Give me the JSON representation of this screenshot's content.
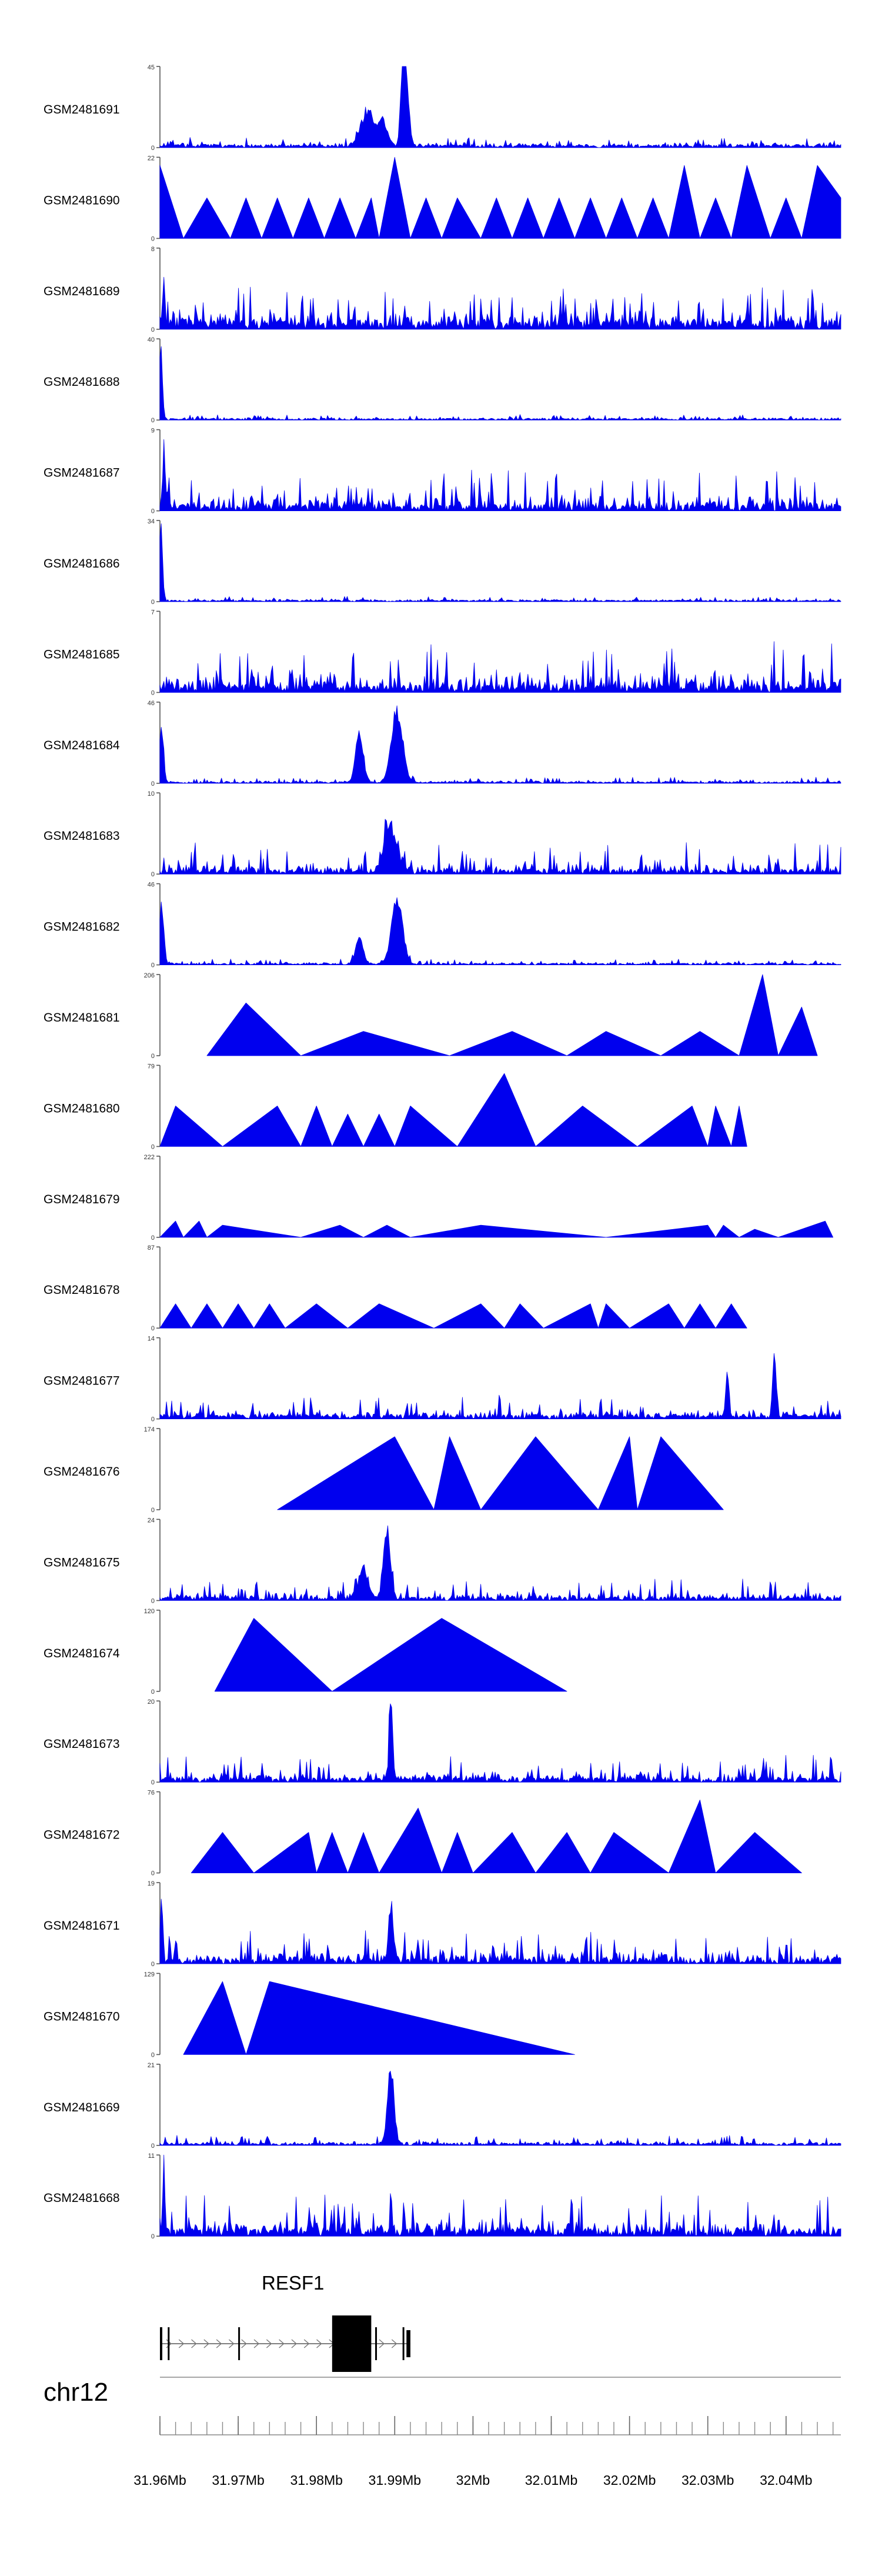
{
  "chart_data": {
    "type": "area",
    "title": "",
    "chromosome": "chr12",
    "x_range_mb": [
      31.96,
      32.047
    ],
    "x_ticks": [
      {
        "mb": 31.96,
        "label": "31.96Mb"
      },
      {
        "mb": 31.97,
        "label": "31.97Mb"
      },
      {
        "mb": 31.98,
        "label": "31.98Mb"
      },
      {
        "mb": 31.99,
        "label": "31.99Mb"
      },
      {
        "mb": 32.0,
        "label": "32Mb"
      },
      {
        "mb": 32.01,
        "label": "32.01Mb"
      },
      {
        "mb": 32.02,
        "label": "32.02Mb"
      },
      {
        "mb": 32.03,
        "label": "32.03Mb"
      },
      {
        "mb": 32.04,
        "label": "32.04Mb"
      }
    ],
    "minor_tick_step_mb": 0.002,
    "series_color": "#0000ee",
    "tracks": [
      {
        "name": "GSM2481691",
        "ymax": 45,
        "ymin": 0,
        "style": "dense",
        "base": 0.04,
        "noise": 0.1,
        "peaks": [
          {
            "mb": 31.9865,
            "h": 0.45,
            "w": 0.0012
          },
          {
            "mb": 31.9885,
            "h": 0.35,
            "w": 0.0008
          },
          {
            "mb": 31.991,
            "h": 1.0,
            "w": 0.0004
          },
          {
            "mb": 31.9915,
            "h": 0.8,
            "w": 0.0005
          }
        ]
      },
      {
        "name": "GSM2481690",
        "ymax": 22,
        "ymin": 0,
        "style": "tri",
        "points": [
          [
            31.96,
            0.9
          ],
          [
            31.963,
            0
          ],
          [
            31.966,
            0.5
          ],
          [
            31.969,
            0
          ],
          [
            31.971,
            0.5
          ],
          [
            31.973,
            0
          ],
          [
            31.975,
            0.5
          ],
          [
            31.977,
            0
          ],
          [
            31.979,
            0.5
          ],
          [
            31.981,
            0
          ],
          [
            31.983,
            0.5
          ],
          [
            31.985,
            0
          ],
          [
            31.987,
            0.5
          ],
          [
            31.988,
            0
          ],
          [
            31.99,
            1.0
          ],
          [
            31.992,
            0
          ],
          [
            31.994,
            0.5
          ],
          [
            31.996,
            0
          ],
          [
            31.998,
            0.5
          ],
          [
            32.001,
            0
          ],
          [
            32.003,
            0.5
          ],
          [
            32.005,
            0
          ],
          [
            32.007,
            0.5
          ],
          [
            32.009,
            0
          ],
          [
            32.011,
            0.5
          ],
          [
            32.013,
            0
          ],
          [
            32.015,
            0.5
          ],
          [
            32.017,
            0
          ],
          [
            32.019,
            0.5
          ],
          [
            32.021,
            0
          ],
          [
            32.023,
            0.5
          ],
          [
            32.025,
            0
          ],
          [
            32.027,
            0.9
          ],
          [
            32.029,
            0
          ],
          [
            32.031,
            0.5
          ],
          [
            32.033,
            0
          ],
          [
            32.035,
            0.9
          ],
          [
            32.038,
            0
          ],
          [
            32.04,
            0.5
          ],
          [
            32.042,
            0
          ],
          [
            32.044,
            0.9
          ],
          [
            32.047,
            0.5
          ]
        ]
      },
      {
        "name": "GSM2481689",
        "ymax": 8,
        "ymin": 0,
        "style": "dense",
        "base": 0.12,
        "noise": 0.45,
        "peaks": [
          {
            "mb": 31.9605,
            "h": 0.7,
            "w": 0.0002
          }
        ]
      },
      {
        "name": "GSM2481688",
        "ymax": 40,
        "ymin": 0,
        "style": "dense",
        "base": 0.02,
        "noise": 0.05,
        "peaks": [
          {
            "mb": 31.9601,
            "h": 1.0,
            "w": 0.0003
          }
        ]
      },
      {
        "name": "GSM2481687",
        "ymax": 9,
        "ymin": 0,
        "style": "dense",
        "base": 0.08,
        "noise": 0.45,
        "peaks": [
          {
            "mb": 31.9605,
            "h": 0.8,
            "w": 0.0002
          }
        ]
      },
      {
        "name": "GSM2481686",
        "ymax": 34,
        "ymin": 0,
        "style": "dense",
        "base": 0.02,
        "noise": 0.05,
        "peaks": [
          {
            "mb": 31.9601,
            "h": 1.0,
            "w": 0.0003
          }
        ]
      },
      {
        "name": "GSM2481685",
        "ymax": 7,
        "ymin": 0,
        "style": "dense",
        "base": 0.1,
        "noise": 0.55,
        "peaks": []
      },
      {
        "name": "GSM2481684",
        "ymax": 46,
        "ymin": 0,
        "style": "dense",
        "base": 0.02,
        "noise": 0.06,
        "peaks": [
          {
            "mb": 31.9602,
            "h": 0.7,
            "w": 0.0004
          },
          {
            "mb": 31.9855,
            "h": 0.65,
            "w": 0.0007
          },
          {
            "mb": 31.9903,
            "h": 1.0,
            "w": 0.001
          }
        ]
      },
      {
        "name": "GSM2481683",
        "ymax": 10,
        "ymin": 0,
        "style": "dense",
        "base": 0.06,
        "noise": 0.35,
        "peaks": [
          {
            "mb": 31.9895,
            "h": 0.6,
            "w": 0.0012
          }
        ]
      },
      {
        "name": "GSM2481682",
        "ymax": 46,
        "ymin": 0,
        "style": "dense",
        "base": 0.02,
        "noise": 0.06,
        "peaks": [
          {
            "mb": 31.9602,
            "h": 0.9,
            "w": 0.0004
          },
          {
            "mb": 31.9855,
            "h": 0.35,
            "w": 0.0007
          },
          {
            "mb": 31.9903,
            "h": 0.85,
            "w": 0.001
          }
        ]
      },
      {
        "name": "GSM2481681",
        "ymax": 206,
        "ymin": 0,
        "style": "tri",
        "points": [
          [
            31.966,
            0
          ],
          [
            31.971,
            0.65
          ],
          [
            31.978,
            0
          ],
          [
            31.986,
            0.3
          ],
          [
            31.997,
            0
          ],
          [
            32.005,
            0.3
          ],
          [
            32.012,
            0
          ],
          [
            32.017,
            0.3
          ],
          [
            32.024,
            0
          ],
          [
            32.029,
            0.3
          ],
          [
            32.034,
            0
          ],
          [
            32.037,
            1.0
          ],
          [
            32.039,
            0
          ],
          [
            32.042,
            0.6
          ],
          [
            32.044,
            0
          ]
        ]
      },
      {
        "name": "GSM2481680",
        "ymax": 79,
        "ymin": 0,
        "style": "tri",
        "points": [
          [
            31.96,
            0
          ],
          [
            31.962,
            0.5
          ],
          [
            31.968,
            0
          ],
          [
            31.975,
            0.5
          ],
          [
            31.978,
            0
          ],
          [
            31.98,
            0.5
          ],
          [
            31.982,
            0
          ],
          [
            31.984,
            0.4
          ],
          [
            31.986,
            0
          ],
          [
            31.988,
            0.4
          ],
          [
            31.99,
            0
          ],
          [
            31.992,
            0.5
          ],
          [
            31.998,
            0
          ],
          [
            32.004,
            0.9
          ],
          [
            32.008,
            0
          ],
          [
            32.014,
            0.5
          ],
          [
            32.021,
            0
          ],
          [
            32.028,
            0.5
          ],
          [
            32.03,
            0
          ],
          [
            32.031,
            0.5
          ],
          [
            32.033,
            0
          ],
          [
            32.034,
            0.5
          ],
          [
            32.035,
            0
          ]
        ]
      },
      {
        "name": "GSM2481679",
        "ymax": 222,
        "ymin": 0,
        "style": "tri",
        "points": [
          [
            31.96,
            0
          ],
          [
            31.962,
            0.2
          ],
          [
            31.963,
            0
          ],
          [
            31.965,
            0.2
          ],
          [
            31.966,
            0
          ],
          [
            31.968,
            0.15
          ],
          [
            31.978,
            0
          ],
          [
            31.983,
            0.15
          ],
          [
            31.986,
            0
          ],
          [
            31.989,
            0.15
          ],
          [
            31.992,
            0
          ],
          [
            32.001,
            0.15
          ],
          [
            32.017,
            0
          ],
          [
            32.03,
            0.15
          ],
          [
            32.031,
            0
          ],
          [
            32.032,
            0.15
          ],
          [
            32.034,
            0
          ],
          [
            32.036,
            0.1
          ],
          [
            32.039,
            0
          ],
          [
            32.045,
            0.2
          ],
          [
            32.046,
            0
          ]
        ]
      },
      {
        "name": "GSM2481678",
        "ymax": 87,
        "ymin": 0,
        "style": "tri",
        "points": [
          [
            31.96,
            0
          ],
          [
            31.962,
            0.3
          ],
          [
            31.964,
            0
          ],
          [
            31.966,
            0.3
          ],
          [
            31.968,
            0
          ],
          [
            31.97,
            0.3
          ],
          [
            31.972,
            0
          ],
          [
            31.974,
            0.3
          ],
          [
            31.976,
            0
          ],
          [
            31.98,
            0.3
          ],
          [
            31.984,
            0
          ],
          [
            31.988,
            0.3
          ],
          [
            31.995,
            0
          ],
          [
            32.001,
            0.3
          ],
          [
            32.004,
            0
          ],
          [
            32.006,
            0.3
          ],
          [
            32.009,
            0
          ],
          [
            32.015,
            0.3
          ],
          [
            32.016,
            0
          ],
          [
            32.017,
            0.3
          ],
          [
            32.02,
            0
          ],
          [
            32.025,
            0.3
          ],
          [
            32.027,
            0
          ],
          [
            32.029,
            0.3
          ],
          [
            32.031,
            0
          ],
          [
            32.033,
            0.3
          ],
          [
            32.035,
            0
          ]
        ]
      },
      {
        "name": "GSM2481677",
        "ymax": 14,
        "ymin": 0,
        "style": "dense",
        "base": 0.06,
        "noise": 0.25,
        "peaks": [
          {
            "mb": 32.0325,
            "h": 0.65,
            "w": 0.0003
          },
          {
            "mb": 32.0385,
            "h": 1.0,
            "w": 0.0003
          }
        ]
      },
      {
        "name": "GSM2481676",
        "ymax": 174,
        "ymin": 0,
        "style": "tri",
        "points": [
          [
            31.975,
            0
          ],
          [
            31.99,
            0.9
          ],
          [
            31.995,
            0
          ],
          [
            31.997,
            0.9
          ],
          [
            32.001,
            0
          ],
          [
            32.008,
            0.9
          ],
          [
            32.016,
            0
          ],
          [
            32.02,
            0.9
          ],
          [
            32.021,
            0
          ],
          [
            32.024,
            0.9
          ],
          [
            32.032,
            0
          ]
        ]
      },
      {
        "name": "GSM2481675",
        "ymax": 24,
        "ymin": 0,
        "style": "dense",
        "base": 0.05,
        "noise": 0.22,
        "peaks": [
          {
            "mb": 31.989,
            "h": 1.0,
            "w": 0.0006
          },
          {
            "mb": 31.986,
            "h": 0.45,
            "w": 0.0008
          }
        ]
      },
      {
        "name": "GSM2481674",
        "ymax": 120,
        "ymin": 0,
        "style": "tri",
        "points": [
          [
            31.967,
            0
          ],
          [
            31.972,
            0.9
          ],
          [
            31.982,
            0
          ],
          [
            31.996,
            0.9
          ],
          [
            32.012,
            0
          ]
        ]
      },
      {
        "name": "GSM2481673",
        "ymax": 20,
        "ymin": 0,
        "style": "dense",
        "base": 0.06,
        "noise": 0.3,
        "peaks": [
          {
            "mb": 31.9895,
            "h": 1.0,
            "w": 0.0003
          }
        ]
      },
      {
        "name": "GSM2481672",
        "ymax": 76,
        "ymin": 0,
        "style": "tri",
        "points": [
          [
            31.964,
            0
          ],
          [
            31.968,
            0.5
          ],
          [
            31.972,
            0
          ],
          [
            31.979,
            0.5
          ],
          [
            31.98,
            0
          ],
          [
            31.982,
            0.5
          ],
          [
            31.984,
            0
          ],
          [
            31.986,
            0.5
          ],
          [
            31.988,
            0
          ],
          [
            31.993,
            0.8
          ],
          [
            31.996,
            0
          ],
          [
            31.998,
            0.5
          ],
          [
            32.0,
            0
          ],
          [
            32.005,
            0.5
          ],
          [
            32.008,
            0
          ],
          [
            32.012,
            0.5
          ],
          [
            32.015,
            0
          ],
          [
            32.018,
            0.5
          ],
          [
            32.025,
            0
          ],
          [
            32.029,
            0.9
          ],
          [
            32.031,
            0
          ],
          [
            32.036,
            0.5
          ],
          [
            32.042,
            0
          ]
        ]
      },
      {
        "name": "GSM2481671",
        "ymax": 19,
        "ymin": 0,
        "style": "dense",
        "base": 0.08,
        "noise": 0.35,
        "peaks": [
          {
            "mb": 31.9602,
            "h": 0.9,
            "w": 0.0002
          },
          {
            "mb": 31.9895,
            "h": 0.8,
            "w": 0.0004
          }
        ]
      },
      {
        "name": "GSM2481670",
        "ymax": 129,
        "ymin": 0,
        "style": "tri",
        "points": [
          [
            31.963,
            0
          ],
          [
            31.968,
            0.9
          ],
          [
            31.971,
            0
          ],
          [
            31.974,
            0.9
          ],
          [
            32.013,
            0
          ]
        ]
      },
      {
        "name": "GSM2481669",
        "ymax": 21,
        "ymin": 0,
        "style": "dense",
        "base": 0.03,
        "noise": 0.1,
        "peaks": [
          {
            "mb": 31.9895,
            "h": 1.0,
            "w": 0.0006
          }
        ]
      },
      {
        "name": "GSM2481668",
        "ymax": 11,
        "ymin": 0,
        "style": "dense",
        "base": 0.1,
        "noise": 0.45,
        "peaks": [
          {
            "mb": 31.9605,
            "h": 1.0,
            "w": 0.0002
          }
        ]
      }
    ],
    "gene": {
      "name": "RESF1",
      "strand": "+",
      "start_mb": 31.96,
      "end_mb": 31.992,
      "exons_mb": [
        [
          31.96,
          31.9603
        ],
        [
          31.961,
          31.9611
        ],
        [
          31.97,
          31.9702
        ],
        [
          31.982,
          31.987
        ],
        [
          31.9875,
          31.9877
        ],
        [
          31.991,
          31.9912
        ],
        [
          31.9915,
          31.992
        ]
      ]
    }
  }
}
